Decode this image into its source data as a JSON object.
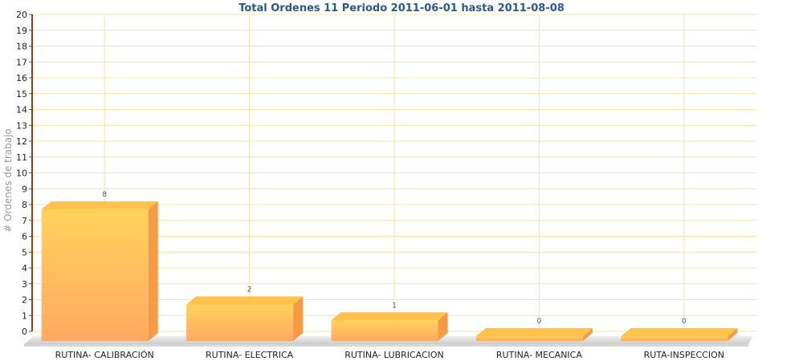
{
  "chart_data": {
    "type": "bar",
    "title": "Total Ordenes 11 Periodo 2011-06-01 hasta 2011-08-08",
    "ylabel": "# Ordenes de trabajo",
    "xlabel": "",
    "categories": [
      "RUTINA- CALIBRACIÓN",
      "RUTINA- ELECTRICA",
      "RUTINA- LUBRICACION",
      "RUTINA- MECANICA",
      "RUTA-INSPECCION"
    ],
    "values": [
      8,
      2,
      1,
      0,
      0
    ],
    "data_labels": [
      "8",
      "2",
      "1",
      "0",
      "0"
    ],
    "ylim": [
      0,
      20
    ],
    "yticks": [
      "0",
      "1",
      "2",
      "3",
      "4",
      "5",
      "6",
      "7",
      "8",
      "9",
      "10",
      "11",
      "12",
      "13",
      "14",
      "15",
      "16",
      "17",
      "18",
      "19",
      "20"
    ],
    "grid": true,
    "bar_3d": true,
    "colors": {
      "bar_top": "#ffd25c",
      "bar_bottom": "#ffa960",
      "bar_side": "#f59a45",
      "bar_cap": "#ffc24a",
      "grid": "#f4e4a8",
      "axis": "#8b4513",
      "title": "#2a5a8a"
    }
  }
}
